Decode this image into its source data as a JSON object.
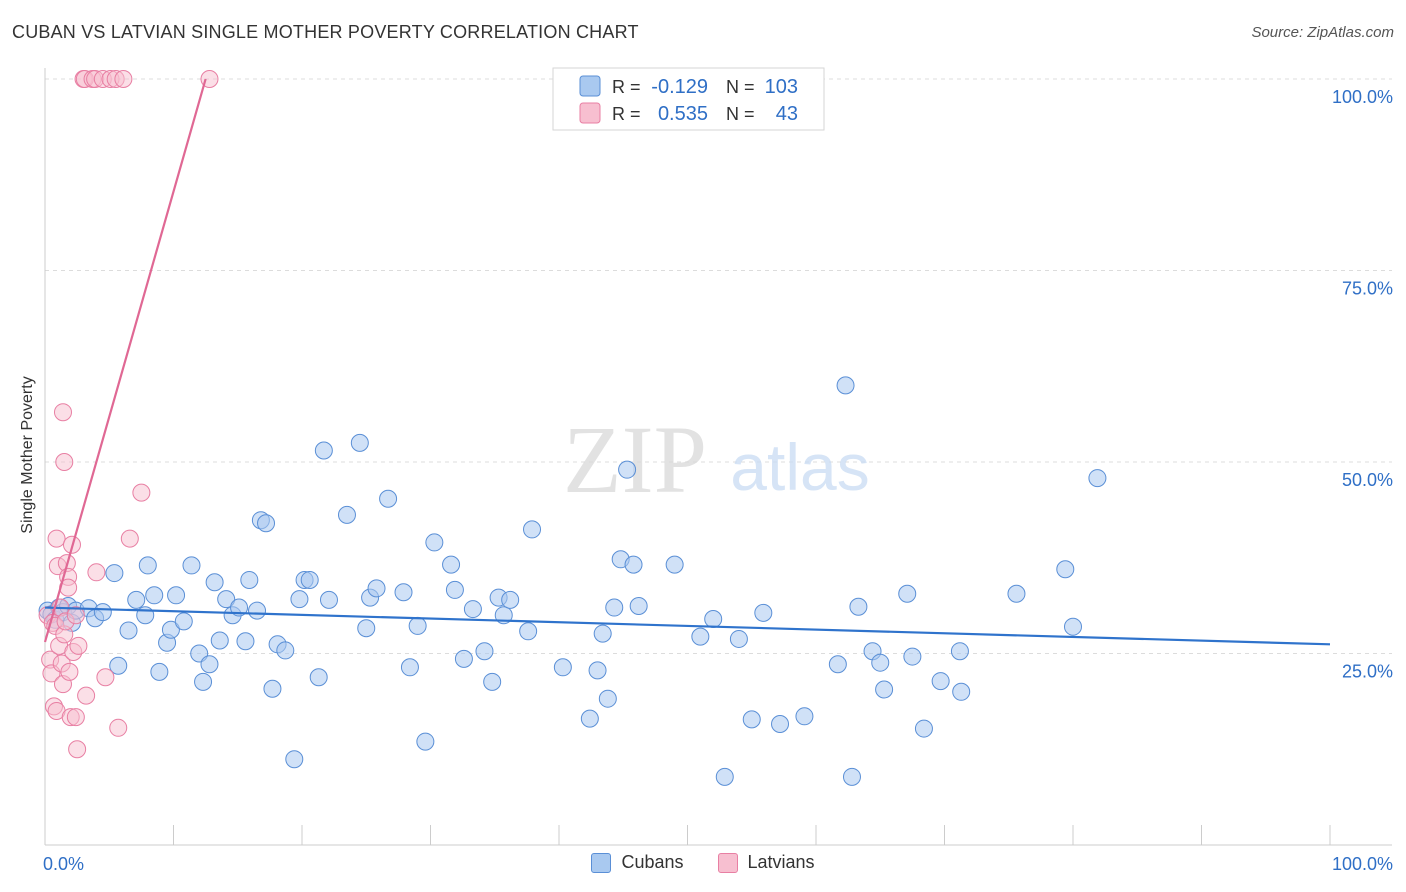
{
  "header": {
    "title": "CUBAN VS LATVIAN SINGLE MOTHER POVERTY CORRELATION CHART",
    "source": "Source: ZipAtlas.com"
  },
  "watermark": {
    "zip": "ZIP",
    "atlas": "atlas"
  },
  "colors": {
    "cubans_fill": "#a9c9f0",
    "cubans_stroke": "#5a8fd6",
    "cubans_line": "#2f73cc",
    "latvians_fill": "#f7bfd0",
    "latvians_stroke": "#e87fa3",
    "latvians_line": "#e06894",
    "value_text": "#2f6fc6"
  },
  "legend": {
    "r_label": "R =",
    "n_label": "N =",
    "rows": [
      {
        "series": "Cubans",
        "r": "-0.129",
        "n": "103"
      },
      {
        "series": "Latvians",
        "r": "0.535",
        "n": "43"
      }
    ]
  },
  "chart_data": {
    "type": "scatter",
    "title": "CUBAN VS LATVIAN SINGLE MOTHER POVERTY CORRELATION CHART",
    "xlabel": "",
    "ylabel": "Single Mother Poverty",
    "xlim": [
      0,
      100
    ],
    "ylim": [
      0,
      100
    ],
    "x_tick_labels": [
      {
        "value": 0,
        "label": "0.0%"
      },
      {
        "value": 100,
        "label": "100.0%"
      }
    ],
    "y_tick_labels": [
      {
        "value": 25,
        "label": "25.0%"
      },
      {
        "value": 50,
        "label": "50.0%"
      },
      {
        "value": 75,
        "label": "75.0%"
      },
      {
        "value": 100,
        "label": "100.0%"
      }
    ],
    "grid": true,
    "series": [
      {
        "name": "Cubans",
        "r": -0.129,
        "n": 103,
        "trendline": [
          [
            0,
            31.0
          ],
          [
            100,
            26.2
          ]
        ],
        "points": [
          [
            0.2,
            30.6
          ],
          [
            0.5,
            30.1
          ],
          [
            0.8,
            29.4
          ],
          [
            1.1,
            31.0
          ],
          [
            1.4,
            30.4
          ],
          [
            1.8,
            31.2
          ],
          [
            2.1,
            29.0
          ],
          [
            2.4,
            30.6
          ],
          [
            3.4,
            30.9
          ],
          [
            3.9,
            29.6
          ],
          [
            4.5,
            30.4
          ],
          [
            5.4,
            35.5
          ],
          [
            5.7,
            23.4
          ],
          [
            6.5,
            28.0
          ],
          [
            7.1,
            32.0
          ],
          [
            7.8,
            30.0
          ],
          [
            8.0,
            36.5
          ],
          [
            8.5,
            32.6
          ],
          [
            8.9,
            22.6
          ],
          [
            9.5,
            26.4
          ],
          [
            9.8,
            28.1
          ],
          [
            10.2,
            32.6
          ],
          [
            10.8,
            29.2
          ],
          [
            11.4,
            36.5
          ],
          [
            12.0,
            25.0
          ],
          [
            12.3,
            21.3
          ],
          [
            12.8,
            23.6
          ],
          [
            13.2,
            34.3
          ],
          [
            13.6,
            26.7
          ],
          [
            14.1,
            32.1
          ],
          [
            14.6,
            30.0
          ],
          [
            15.1,
            31.0
          ],
          [
            15.6,
            26.6
          ],
          [
            15.9,
            34.6
          ],
          [
            16.5,
            30.6
          ],
          [
            16.8,
            42.4
          ],
          [
            17.2,
            42.0
          ],
          [
            17.7,
            20.4
          ],
          [
            18.1,
            26.2
          ],
          [
            18.7,
            25.4
          ],
          [
            19.4,
            11.2
          ],
          [
            19.8,
            32.1
          ],
          [
            20.2,
            34.6
          ],
          [
            20.6,
            34.6
          ],
          [
            21.3,
            21.9
          ],
          [
            21.7,
            51.5
          ],
          [
            22.1,
            32.0
          ],
          [
            23.5,
            43.1
          ],
          [
            24.5,
            52.5
          ],
          [
            25.0,
            28.3
          ],
          [
            25.3,
            32.3
          ],
          [
            25.8,
            33.5
          ],
          [
            26.7,
            45.2
          ],
          [
            27.9,
            33.0
          ],
          [
            28.4,
            23.2
          ],
          [
            29.0,
            28.6
          ],
          [
            29.6,
            13.5
          ],
          [
            30.3,
            39.5
          ],
          [
            31.6,
            36.6
          ],
          [
            31.9,
            33.3
          ],
          [
            32.6,
            24.3
          ],
          [
            33.3,
            30.8
          ],
          [
            34.2,
            25.3
          ],
          [
            34.8,
            21.3
          ],
          [
            35.3,
            32.3
          ],
          [
            35.7,
            30.0
          ],
          [
            36.2,
            32.0
          ],
          [
            37.6,
            27.9
          ],
          [
            37.9,
            41.2
          ],
          [
            40.3,
            23.2
          ],
          [
            42.4,
            16.5
          ],
          [
            43.0,
            22.8
          ],
          [
            43.4,
            27.6
          ],
          [
            43.8,
            19.1
          ],
          [
            44.3,
            31.0
          ],
          [
            44.8,
            37.3
          ],
          [
            45.3,
            49.0
          ],
          [
            45.8,
            36.6
          ],
          [
            46.2,
            31.2
          ],
          [
            49.0,
            36.6
          ],
          [
            51.0,
            27.2
          ],
          [
            52.0,
            29.5
          ],
          [
            52.9,
            8.9
          ],
          [
            54.0,
            26.9
          ],
          [
            55.0,
            16.4
          ],
          [
            55.9,
            30.3
          ],
          [
            57.2,
            15.8
          ],
          [
            59.1,
            16.8
          ],
          [
            61.7,
            23.6
          ],
          [
            62.3,
            60.0
          ],
          [
            62.8,
            8.9
          ],
          [
            63.3,
            31.1
          ],
          [
            64.4,
            25.3
          ],
          [
            65.0,
            23.8
          ],
          [
            65.3,
            20.3
          ],
          [
            67.1,
            32.8
          ],
          [
            67.5,
            24.6
          ],
          [
            68.4,
            15.2
          ],
          [
            69.7,
            21.4
          ],
          [
            71.2,
            25.3
          ],
          [
            71.3,
            20.0
          ],
          [
            75.6,
            32.8
          ],
          [
            79.4,
            36.0
          ],
          [
            80.0,
            28.5
          ],
          [
            81.9,
            47.9
          ]
        ]
      },
      {
        "name": "Latvians",
        "r": 0.535,
        "n": 43,
        "trendline": [
          [
            0,
            26.5
          ],
          [
            12.5,
            100
          ]
        ],
        "points": [
          [
            0.2,
            30.0
          ],
          [
            0.4,
            24.2
          ],
          [
            0.5,
            22.4
          ],
          [
            0.6,
            29.0
          ],
          [
            0.7,
            18.1
          ],
          [
            0.8,
            28.6
          ],
          [
            0.9,
            17.5
          ],
          [
            0.9,
            40.0
          ],
          [
            1.0,
            36.4
          ],
          [
            1.1,
            26.0
          ],
          [
            1.2,
            31.0
          ],
          [
            1.3,
            23.7
          ],
          [
            1.4,
            21.0
          ],
          [
            1.4,
            56.5
          ],
          [
            1.5,
            50.0
          ],
          [
            1.5,
            27.5
          ],
          [
            1.6,
            29.2
          ],
          [
            1.7,
            36.8
          ],
          [
            1.8,
            35.0
          ],
          [
            1.8,
            33.6
          ],
          [
            1.9,
            22.6
          ],
          [
            2.0,
            16.7
          ],
          [
            2.1,
            39.2
          ],
          [
            2.2,
            25.2
          ],
          [
            2.4,
            16.7
          ],
          [
            2.5,
            12.5
          ],
          [
            2.6,
            26.0
          ],
          [
            2.4,
            30.0
          ],
          [
            3.0,
            100.0
          ],
          [
            3.1,
            100.0
          ],
          [
            3.2,
            19.5
          ],
          [
            3.7,
            100.0
          ],
          [
            3.9,
            100.0
          ],
          [
            4.0,
            35.6
          ],
          [
            4.5,
            100.0
          ],
          [
            4.7,
            21.9
          ],
          [
            5.1,
            100.0
          ],
          [
            5.5,
            100.0
          ],
          [
            5.7,
            15.3
          ],
          [
            6.1,
            100.0
          ],
          [
            6.6,
            40.0
          ],
          [
            7.5,
            46.0
          ],
          [
            12.8,
            100.0
          ]
        ]
      }
    ]
  }
}
